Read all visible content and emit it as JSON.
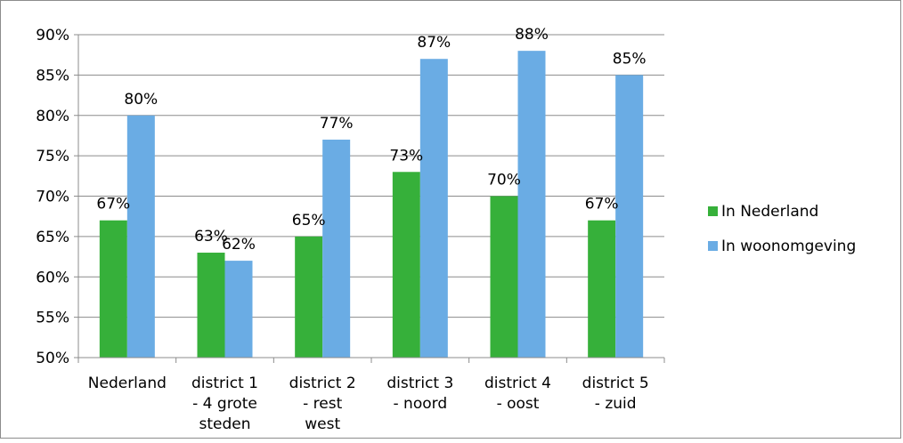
{
  "chart_data": {
    "type": "bar",
    "categories": [
      [
        "Nederland"
      ],
      [
        "district 1",
        "- 4 grote",
        "steden"
      ],
      [
        "district 2",
        "- rest",
        "west"
      ],
      [
        "district 3",
        "- noord"
      ],
      [
        "district 4",
        "- oost"
      ],
      [
        "district 5",
        "- zuid"
      ]
    ],
    "series": [
      {
        "name": "In Nederland",
        "color": "#36b03a",
        "values": [
          67,
          63,
          65,
          73,
          70,
          67
        ],
        "labels": [
          "67%",
          "63%",
          "65%",
          "73%",
          "70%",
          "67%"
        ]
      },
      {
        "name": "In woonomgeving",
        "color": "#6aace4",
        "values": [
          80,
          62,
          77,
          87,
          88,
          85
        ],
        "labels": [
          "80%",
          "62%",
          "77%",
          "87%",
          "88%",
          "85%"
        ]
      }
    ],
    "yticks": [
      "50%",
      "55%",
      "60%",
      "65%",
      "70%",
      "75%",
      "80%",
      "85%",
      "90%"
    ],
    "ylim": [
      50,
      90
    ],
    "ytick_step": 5,
    "grid": true,
    "legend_position": "right"
  }
}
